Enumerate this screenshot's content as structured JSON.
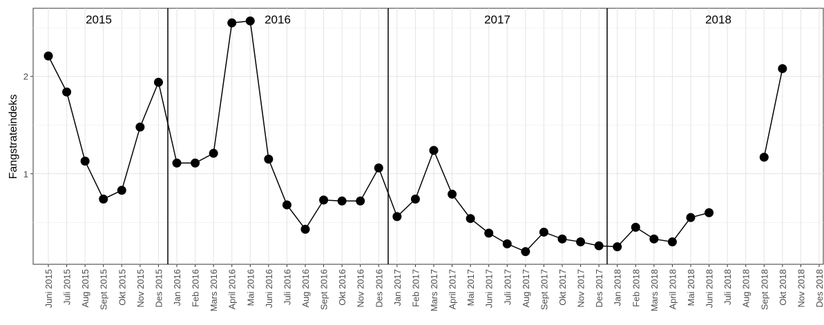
{
  "chart_data": {
    "type": "line",
    "y_label": "Fangstrateindeks",
    "panels": [
      "2015",
      "2016",
      "2017",
      "2018"
    ],
    "categories": [
      "Juni 2015",
      "Juli 2015",
      "Aug 2015",
      "Sept 2015",
      "Okt 2015",
      "Nov 2015",
      "Des 2015",
      "Jan 2016",
      "Feb 2016",
      "Mars 2016",
      "April 2016",
      "Mai 2016",
      "Juni 2016",
      "Juli 2016",
      "Aug 2016",
      "Sept 2016",
      "Okt 2016",
      "Nov 2016",
      "Des 2016",
      "Jan 2017",
      "Feb 2017",
      "Mars 2017",
      "April 2017",
      "Mai 2017",
      "Juni 2017",
      "Juli 2017",
      "Aug 2017",
      "Sept 2017",
      "Okt 2017",
      "Nov 2017",
      "Des 2017",
      "Jan 2018",
      "Feb 2018",
      "Mars 2018",
      "April 2018",
      "Mai 2018",
      "Juni 2018",
      "Juli 2018",
      "Aug 2018",
      "Sept 2018",
      "Okt 2018",
      "Nov 2018",
      "Des 2018"
    ],
    "values": [
      2.21,
      1.84,
      1.13,
      0.74,
      0.83,
      1.48,
      1.94,
      1.11,
      1.11,
      1.21,
      2.55,
      2.57,
      1.15,
      0.68,
      0.43,
      0.73,
      0.72,
      0.72,
      1.06,
      0.56,
      0.74,
      1.24,
      0.79,
      0.54,
      0.39,
      0.28,
      0.2,
      0.4,
      0.33,
      0.3,
      0.26,
      0.25,
      0.45,
      0.33,
      0.3,
      0.55,
      0.6,
      null,
      null,
      1.17,
      2.08,
      null,
      null
    ],
    "color": "#000000",
    "ylim": [
      0.07,
      2.7
    ],
    "yticks": [
      1,
      2
    ],
    "grid": true
  }
}
